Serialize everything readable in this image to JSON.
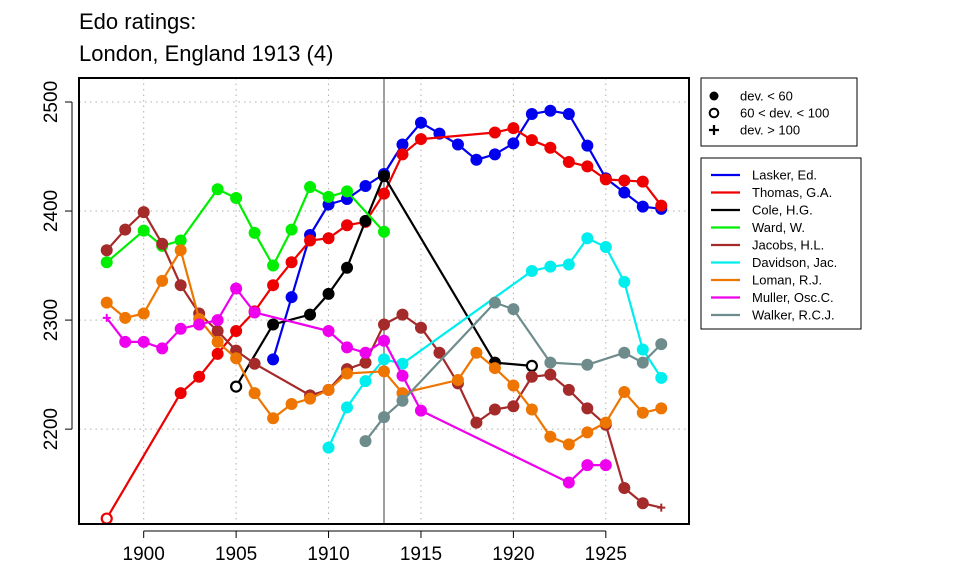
{
  "chart_data": {
    "type": "line",
    "title": [
      "Edo ratings:",
      "London, England 1913 (4)"
    ],
    "xlabel": "",
    "ylabel": "",
    "xlim": [
      1896.5,
      1929.5
    ],
    "ylim": [
      2113,
      2522
    ],
    "x_ticks": [
      1900,
      1905,
      1910,
      1915,
      1920,
      1925
    ],
    "y_ticks": [
      2200,
      2300,
      2400,
      2500
    ],
    "grid": true,
    "marker_line_x": 1913,
    "marker_legend": {
      "placement": "top-right",
      "entries": [
        {
          "symbol": "filled-circle",
          "label": "dev. < 60"
        },
        {
          "symbol": "open-circle",
          "label": "60 < dev. < 100"
        },
        {
          "symbol": "plus",
          "label": "dev. > 100"
        }
      ]
    },
    "series_legend_placement": "right",
    "series": [
      {
        "name": "Lasker, Ed.",
        "color": "#0000ee",
        "points": [
          [
            1907,
            2264,
            "f"
          ],
          [
            1908,
            2321,
            "f"
          ],
          [
            1909,
            2378,
            "f"
          ],
          [
            1910,
            2406,
            "f"
          ],
          [
            1911,
            2411,
            "f"
          ],
          [
            1912,
            2423,
            "f"
          ],
          [
            1913,
            2434,
            "f"
          ],
          [
            1914,
            2461,
            "f"
          ],
          [
            1915,
            2481,
            "f"
          ],
          [
            1916,
            2471,
            "f"
          ],
          [
            1917,
            2461,
            "f"
          ],
          [
            1918,
            2447,
            "f"
          ],
          [
            1919,
            2452,
            "f"
          ],
          [
            1920,
            2462,
            "f"
          ],
          [
            1921,
            2489,
            "f"
          ],
          [
            1922,
            2492,
            "f"
          ],
          [
            1923,
            2489,
            "f"
          ],
          [
            1924,
            2460,
            "f"
          ],
          [
            1925,
            2430,
            "f"
          ],
          [
            1926,
            2417,
            "f"
          ],
          [
            1927,
            2404,
            "f"
          ],
          [
            1928,
            2402,
            "f"
          ]
        ]
      },
      {
        "name": "Thomas, G.A.",
        "color": "#ee0000",
        "points": [
          [
            1898,
            2118,
            "o"
          ],
          [
            1902,
            2233,
            "f"
          ],
          [
            1903,
            2248,
            "f"
          ],
          [
            1904,
            2269,
            "f"
          ],
          [
            1905,
            2290,
            "f"
          ],
          [
            1906,
            2308,
            "f"
          ],
          [
            1907,
            2332,
            "f"
          ],
          [
            1908,
            2353,
            "f"
          ],
          [
            1909,
            2373,
            "f"
          ],
          [
            1910,
            2375,
            "f"
          ],
          [
            1911,
            2387,
            "f"
          ],
          [
            1912,
            2390,
            "f"
          ],
          [
            1913,
            2416,
            "f"
          ],
          [
            1914,
            2452,
            "f"
          ],
          [
            1915,
            2466,
            "f"
          ],
          [
            1919,
            2472,
            "f"
          ],
          [
            1920,
            2476,
            "f"
          ],
          [
            1921,
            2465,
            "f"
          ],
          [
            1922,
            2458,
            "f"
          ],
          [
            1923,
            2445,
            "f"
          ],
          [
            1924,
            2441,
            "f"
          ],
          [
            1925,
            2429,
            "f"
          ],
          [
            1926,
            2428,
            "f"
          ],
          [
            1927,
            2427,
            "f"
          ],
          [
            1928,
            2405,
            "f"
          ]
        ]
      },
      {
        "name": "Cole, H.G.",
        "color": "#000000",
        "points": [
          [
            1905,
            2239,
            "o"
          ],
          [
            1907,
            2296,
            "f"
          ],
          [
            1909,
            2305,
            "f"
          ],
          [
            1910,
            2324,
            "f"
          ],
          [
            1911,
            2348,
            "f"
          ],
          [
            1912,
            2391,
            "f"
          ],
          [
            1913,
            2432,
            "f"
          ],
          [
            1919,
            2261,
            "f"
          ],
          [
            1921,
            2258,
            "o"
          ]
        ]
      },
      {
        "name": "Ward, W.",
        "color": "#00ee00",
        "points": [
          [
            1898,
            2353,
            "f"
          ],
          [
            1900,
            2382,
            "f"
          ],
          [
            1901,
            2368,
            "f"
          ],
          [
            1902,
            2373,
            "f"
          ],
          [
            1904,
            2420,
            "f"
          ],
          [
            1905,
            2412,
            "f"
          ],
          [
            1906,
            2380,
            "f"
          ],
          [
            1907,
            2350,
            "f"
          ],
          [
            1908,
            2383,
            "f"
          ],
          [
            1909,
            2422,
            "f"
          ],
          [
            1910,
            2413,
            "f"
          ],
          [
            1911,
            2418,
            "f"
          ],
          [
            1913,
            2381,
            "f"
          ]
        ]
      },
      {
        "name": "Jacobs, H.L.",
        "color": "#a52a2a",
        "points": [
          [
            1898,
            2364,
            "f"
          ],
          [
            1899,
            2383,
            "f"
          ],
          [
            1900,
            2399,
            "f"
          ],
          [
            1901,
            2370,
            "f"
          ],
          [
            1902,
            2332,
            "f"
          ],
          [
            1903,
            2306,
            "f"
          ],
          [
            1904,
            2290,
            "f"
          ],
          [
            1905,
            2272,
            "f"
          ],
          [
            1906,
            2260,
            "f"
          ],
          [
            1909,
            2231,
            "f"
          ],
          [
            1910,
            2236,
            "f"
          ],
          [
            1911,
            2255,
            "f"
          ],
          [
            1912,
            2261,
            "f"
          ],
          [
            1913,
            2296,
            "f"
          ],
          [
            1914,
            2305,
            "f"
          ],
          [
            1915,
            2293,
            "f"
          ],
          [
            1916,
            2270,
            "f"
          ],
          [
            1917,
            2242,
            "f"
          ],
          [
            1918,
            2206,
            "f"
          ],
          [
            1919,
            2218,
            "f"
          ],
          [
            1920,
            2221,
            "f"
          ],
          [
            1921,
            2248,
            "f"
          ],
          [
            1922,
            2250,
            "f"
          ],
          [
            1923,
            2236,
            "f"
          ],
          [
            1924,
            2219,
            "f"
          ],
          [
            1925,
            2204,
            "f"
          ],
          [
            1926,
            2146,
            "f"
          ],
          [
            1927,
            2132,
            "f"
          ],
          [
            1928,
            2128,
            "n"
          ]
        ]
      },
      {
        "name": "Davidson, Jac.",
        "color": "#00eeee",
        "points": [
          [
            1910,
            2183,
            "f"
          ],
          [
            1911,
            2220,
            "f"
          ],
          [
            1912,
            2244,
            "f"
          ],
          [
            1913,
            2264,
            "f"
          ],
          [
            1914,
            2260,
            "f"
          ],
          [
            1921,
            2345,
            "f"
          ],
          [
            1922,
            2349,
            "f"
          ],
          [
            1923,
            2351,
            "f"
          ],
          [
            1924,
            2375,
            "f"
          ],
          [
            1925,
            2367,
            "f"
          ],
          [
            1926,
            2335,
            "f"
          ],
          [
            1927,
            2273,
            "f"
          ],
          [
            1928,
            2247,
            "f"
          ]
        ]
      },
      {
        "name": "Loman, R.J.",
        "color": "#ee7600",
        "points": [
          [
            1898,
            2316,
            "f"
          ],
          [
            1899,
            2302,
            "f"
          ],
          [
            1900,
            2306,
            "f"
          ],
          [
            1901,
            2336,
            "f"
          ],
          [
            1902,
            2364,
            "f"
          ],
          [
            1903,
            2301,
            "f"
          ],
          [
            1904,
            2280,
            "f"
          ],
          [
            1905,
            2265,
            "f"
          ],
          [
            1906,
            2233,
            "f"
          ],
          [
            1907,
            2210,
            "f"
          ],
          [
            1908,
            2223,
            "f"
          ],
          [
            1909,
            2228,
            "f"
          ],
          [
            1910,
            2236,
            "f"
          ],
          [
            1911,
            2251,
            "f"
          ],
          [
            1913,
            2253,
            "f"
          ],
          [
            1914,
            2233,
            "f"
          ],
          [
            1917,
            2245,
            "f"
          ],
          [
            1918,
            2270,
            "f"
          ],
          [
            1919,
            2256,
            "f"
          ],
          [
            1920,
            2240,
            "f"
          ],
          [
            1921,
            2218,
            "f"
          ],
          [
            1922,
            2193,
            "f"
          ],
          [
            1923,
            2186,
            "f"
          ],
          [
            1924,
            2197,
            "f"
          ],
          [
            1925,
            2206,
            "f"
          ],
          [
            1926,
            2234,
            "f"
          ],
          [
            1927,
            2215,
            "f"
          ],
          [
            1928,
            2219,
            "f"
          ]
        ]
      },
      {
        "name": "Muller, Osc.C.",
        "color": "#ee00ee",
        "points": [
          [
            1898,
            2302,
            "n"
          ],
          [
            1899,
            2280,
            "f"
          ],
          [
            1900,
            2280,
            "f"
          ],
          [
            1901,
            2274,
            "f"
          ],
          [
            1902,
            2292,
            "f"
          ],
          [
            1903,
            2296,
            "f"
          ],
          [
            1904,
            2300,
            "f"
          ],
          [
            1905,
            2329,
            "f"
          ],
          [
            1906,
            2307,
            "f"
          ],
          [
            1910,
            2290,
            "f"
          ],
          [
            1911,
            2275,
            "f"
          ],
          [
            1912,
            2270,
            "f"
          ],
          [
            1913,
            2281,
            "f"
          ],
          [
            1914,
            2249,
            "f"
          ],
          [
            1915,
            2217,
            "f"
          ],
          [
            1923,
            2151,
            "f"
          ],
          [
            1924,
            2167,
            "f"
          ],
          [
            1925,
            2167,
            "f"
          ]
        ]
      },
      {
        "name": "Walker, R.C.J.",
        "color": "#6f8c8c",
        "points": [
          [
            1912,
            2189,
            "f"
          ],
          [
            1913,
            2211,
            "f"
          ],
          [
            1914,
            2226,
            "f"
          ],
          [
            1919,
            2316,
            "f"
          ],
          [
            1920,
            2310,
            "f"
          ],
          [
            1922,
            2261,
            "f"
          ],
          [
            1924,
            2259,
            "f"
          ],
          [
            1926,
            2270,
            "f"
          ],
          [
            1927,
            2261,
            "f"
          ],
          [
            1928,
            2278,
            "f"
          ]
        ]
      }
    ]
  }
}
